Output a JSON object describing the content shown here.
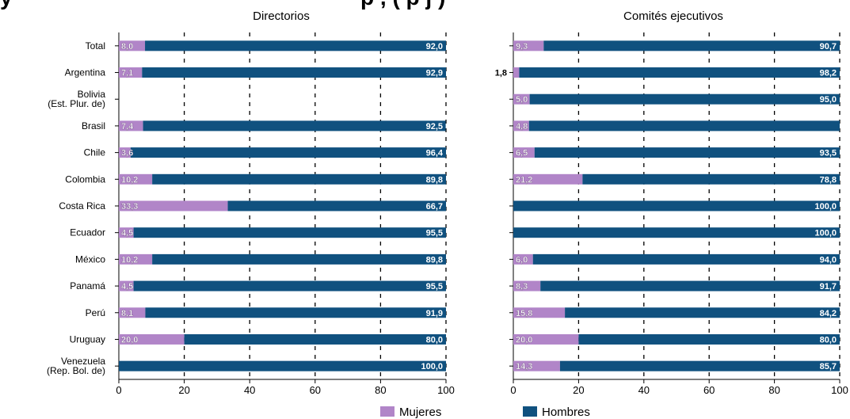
{
  "chart_data": {
    "type": "bar",
    "stacked": true,
    "orientation": "horizontal",
    "partial_title": "y",
    "partial_title_2": "p    ,     (  p        j  )",
    "categories": [
      "Total",
      "Argentina",
      "Bolivia (Est. Plur. de)",
      "Brasil",
      "Chile",
      "Colombia",
      "Costa Rica",
      "Ecuador",
      "México",
      "Panamá",
      "Perú",
      "Uruguay",
      "Venezuela (Rep. Bol. de)"
    ],
    "category_lines": [
      [
        "Total"
      ],
      [
        "Argentina"
      ],
      [
        "Bolivia",
        "(Est. Plur. de)"
      ],
      [
        "Brasil"
      ],
      [
        "Chile"
      ],
      [
        "Colombia"
      ],
      [
        "Costa Rica"
      ],
      [
        "Ecuador"
      ],
      [
        "México"
      ],
      [
        "Panamá"
      ],
      [
        "Perú"
      ],
      [
        "Uruguay"
      ],
      [
        "Venezuela",
        "(Rep. Bol. de)"
      ]
    ],
    "xlim": [
      0,
      100
    ],
    "xticks": [
      "0",
      "20",
      "40",
      "60",
      "80",
      "100"
    ],
    "grid": "vertical dashed",
    "legend_position": "bottom",
    "colors": {
      "mujeres": "#b185c8",
      "hombres": "#10517f"
    },
    "panels": [
      {
        "title": "Directorios",
        "series": [
          {
            "name": "Mujeres",
            "values": [
              8.0,
              7.1,
              null,
              7.4,
              3.6,
              10.2,
              33.3,
              4.5,
              10.2,
              4.5,
              8.1,
              20.0,
              0
            ],
            "labels": [
              "8,0",
              "7,1",
              "",
              "7,4",
              "3,6",
              "10,2",
              "33,3",
              "4,5",
              "10,2",
              "4,5",
              "8,1",
              "20,0",
              ""
            ]
          },
          {
            "name": "Hombres",
            "values": [
              92.0,
              92.9,
              null,
              92.5,
              96.4,
              89.8,
              66.7,
              95.5,
              89.8,
              95.5,
              91.9,
              80.0,
              100.0
            ],
            "labels": [
              "92,0",
              "92,9",
              "",
              "92,5",
              "96,4",
              "89,8",
              "66,7",
              "95,5",
              "89,8",
              "95,5",
              "91,9",
              "80,0",
              "100,0"
            ]
          }
        ]
      },
      {
        "title": "Comités ejecutivos",
        "series": [
          {
            "name": "Mujeres",
            "values": [
              9.3,
              1.8,
              5.0,
              4.8,
              6.5,
              21.2,
              0,
              0,
              6.0,
              8.3,
              15.8,
              20.0,
              14.3
            ],
            "labels": [
              "9,3",
              "1,8",
              "5,0",
              "4,8",
              "6,5",
              "21,2",
              "",
              "",
              "6,0",
              "8,3",
              "15,8",
              "20,0",
              "14,3"
            ]
          },
          {
            "name": "Hombres",
            "values": [
              90.7,
              98.2,
              95.0,
              95.2,
              93.5,
              78.8,
              100.0,
              100.0,
              94.0,
              91.7,
              84.2,
              80.0,
              85.7
            ],
            "labels": [
              "90,7",
              "98,2",
              "95,0",
              "",
              "93,5",
              "78,8",
              "100,0",
              "100,0",
              "94,0",
              "91,7",
              "84,2",
              "80,0",
              "85,7"
            ]
          }
        ]
      }
    ],
    "legend": [
      "Mujeres",
      "Hombres"
    ]
  }
}
